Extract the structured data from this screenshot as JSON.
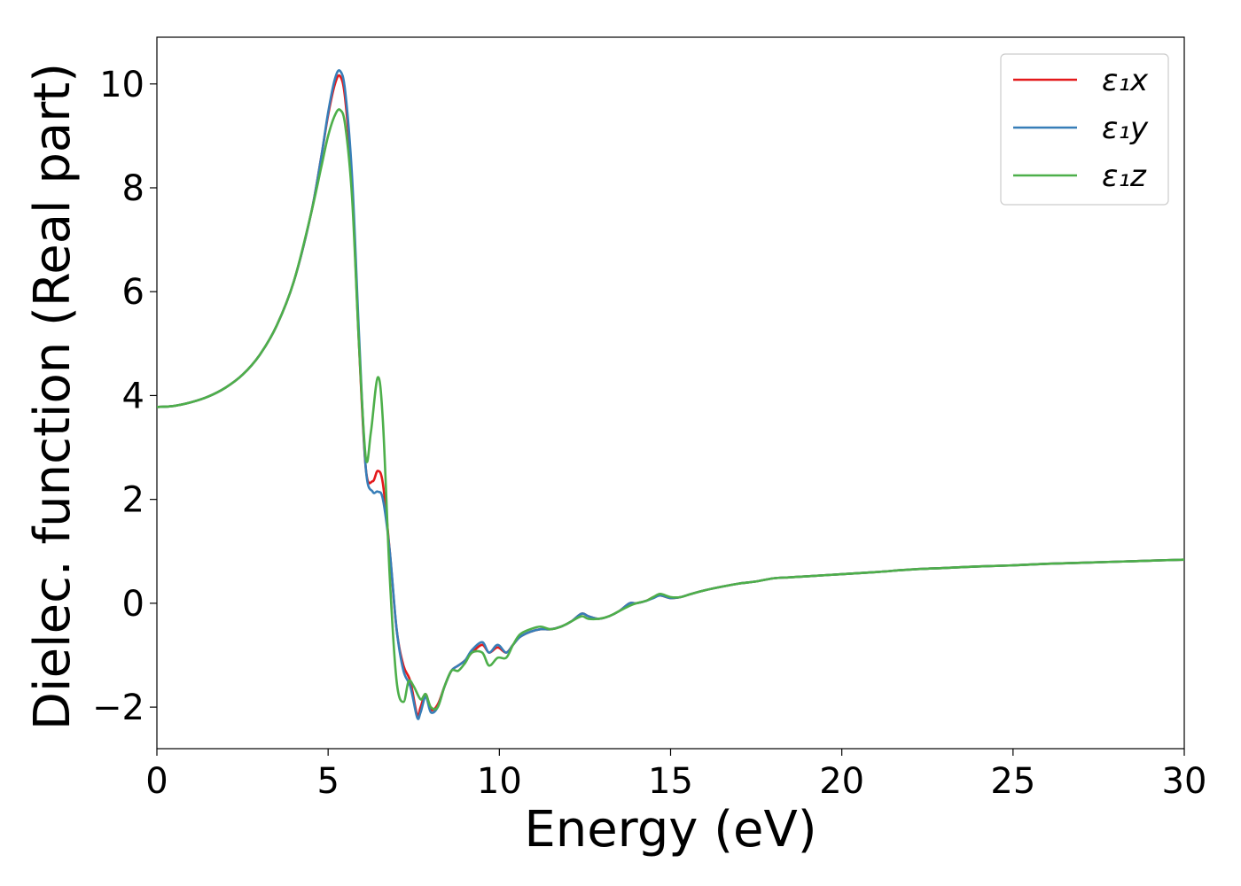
{
  "chart_data": {
    "type": "line",
    "title": "",
    "xlabel": "Energy (eV)",
    "ylabel": "Dielec. function (Real part)",
    "xlim": [
      0,
      30
    ],
    "ylim": [
      -2.8,
      10.9
    ],
    "xticks": [
      0,
      5,
      10,
      15,
      20,
      25,
      30
    ],
    "xtick_labels": [
      "0",
      "5",
      "10",
      "15",
      "20",
      "25",
      "30"
    ],
    "yticks": [
      -2,
      0,
      2,
      4,
      6,
      8,
      10
    ],
    "ytick_labels": [
      "−2",
      "0",
      "2",
      "4",
      "6",
      "8",
      "10"
    ],
    "grid": false,
    "legend_position": "top-right",
    "series": [
      {
        "name": "ε₁x",
        "color": "#e41a1c",
        "x": [
          0,
          0.5,
          1,
          1.5,
          2,
          2.5,
          3,
          3.5,
          4,
          4.5,
          4.8,
          5.0,
          5.2,
          5.35,
          5.5,
          5.7,
          5.9,
          6.1,
          6.3,
          6.45,
          6.6,
          6.8,
          7.0,
          7.2,
          7.4,
          7.6,
          7.7,
          7.85,
          8.0,
          8.2,
          8.4,
          8.6,
          8.8,
          9.0,
          9.2,
          9.5,
          9.7,
          9.95,
          10.2,
          10.4,
          10.6,
          10.9,
          11.2,
          11.5,
          11.8,
          12.1,
          12.4,
          12.6,
          12.9,
          13.2,
          13.5,
          13.8,
          14.0,
          14.3,
          14.5,
          14.7,
          15.0,
          15.3,
          15.6,
          16.0,
          16.5,
          17.0,
          17.5,
          18.0,
          18.5,
          19.0,
          20.0,
          21.0,
          22.0,
          23.0,
          24.0,
          25.0,
          26.0,
          27.0,
          28.0,
          29.0,
          30.0
        ],
        "values": [
          3.78,
          3.8,
          3.87,
          3.98,
          4.15,
          4.4,
          4.78,
          5.35,
          6.2,
          7.5,
          8.6,
          9.4,
          10.0,
          10.15,
          9.7,
          8.0,
          5.0,
          2.6,
          2.35,
          2.55,
          2.3,
          1.0,
          -0.5,
          -1.2,
          -1.5,
          -2.15,
          -2.0,
          -1.75,
          -2.05,
          -1.95,
          -1.6,
          -1.3,
          -1.2,
          -1.1,
          -0.95,
          -0.8,
          -0.95,
          -0.85,
          -0.95,
          -0.8,
          -0.65,
          -0.55,
          -0.5,
          -0.5,
          -0.45,
          -0.35,
          -0.2,
          -0.25,
          -0.3,
          -0.25,
          -0.15,
          0.0,
          0.0,
          0.05,
          0.12,
          0.15,
          0.1,
          0.12,
          0.18,
          0.25,
          0.32,
          0.38,
          0.42,
          0.48,
          0.5,
          0.52,
          0.56,
          0.6,
          0.65,
          0.68,
          0.71,
          0.73,
          0.76,
          0.78,
          0.8,
          0.82,
          0.84
        ]
      },
      {
        "name": "ε₁y",
        "color": "#377eb8",
        "x": [
          0,
          0.5,
          1,
          1.5,
          2,
          2.5,
          3,
          3.5,
          4,
          4.5,
          4.8,
          5.0,
          5.2,
          5.35,
          5.5,
          5.7,
          5.9,
          6.1,
          6.3,
          6.45,
          6.6,
          6.8,
          7.0,
          7.2,
          7.4,
          7.6,
          7.7,
          7.85,
          8.0,
          8.2,
          8.4,
          8.6,
          8.8,
          9.0,
          9.2,
          9.5,
          9.7,
          9.95,
          10.2,
          10.4,
          10.6,
          10.9,
          11.2,
          11.5,
          11.8,
          12.1,
          12.4,
          12.6,
          12.9,
          13.2,
          13.5,
          13.8,
          14.0,
          14.3,
          14.5,
          14.7,
          15.0,
          15.3,
          15.6,
          16.0,
          16.5,
          17.0,
          17.5,
          18.0,
          18.5,
          19.0,
          20.0,
          21.0,
          22.0,
          23.0,
          24.0,
          25.0,
          26.0,
          27.0,
          28.0,
          29.0,
          30.0
        ],
        "values": [
          3.78,
          3.8,
          3.87,
          3.98,
          4.15,
          4.4,
          4.78,
          5.35,
          6.2,
          7.5,
          8.6,
          9.45,
          10.1,
          10.25,
          9.85,
          8.2,
          5.2,
          2.6,
          2.15,
          2.15,
          2.0,
          1.0,
          -0.5,
          -1.3,
          -1.6,
          -2.2,
          -2.1,
          -1.8,
          -2.1,
          -2.0,
          -1.6,
          -1.3,
          -1.2,
          -1.1,
          -0.9,
          -0.75,
          -0.95,
          -0.8,
          -0.95,
          -0.8,
          -0.65,
          -0.55,
          -0.5,
          -0.5,
          -0.45,
          -0.35,
          -0.2,
          -0.25,
          -0.3,
          -0.25,
          -0.15,
          0.0,
          0.0,
          0.05,
          0.1,
          0.15,
          0.1,
          0.12,
          0.18,
          0.25,
          0.32,
          0.38,
          0.42,
          0.48,
          0.5,
          0.52,
          0.56,
          0.6,
          0.65,
          0.68,
          0.71,
          0.73,
          0.76,
          0.78,
          0.8,
          0.82,
          0.84
        ]
      },
      {
        "name": "ε₁z",
        "color": "#4daf4a",
        "x": [
          0,
          0.5,
          1,
          1.5,
          2,
          2.5,
          3,
          3.5,
          4,
          4.5,
          4.8,
          5.0,
          5.2,
          5.35,
          5.5,
          5.7,
          5.9,
          6.1,
          6.25,
          6.45,
          6.6,
          6.8,
          7.0,
          7.2,
          7.35,
          7.5,
          7.7,
          7.85,
          8.0,
          8.2,
          8.4,
          8.6,
          8.8,
          9.0,
          9.2,
          9.5,
          9.7,
          9.95,
          10.2,
          10.4,
          10.6,
          10.9,
          11.2,
          11.5,
          11.8,
          12.1,
          12.4,
          12.6,
          12.9,
          13.2,
          13.5,
          13.8,
          14.0,
          14.3,
          14.5,
          14.7,
          15.0,
          15.3,
          15.6,
          16.0,
          16.5,
          17.0,
          17.5,
          18.0,
          18.5,
          19.0,
          20.0,
          21.0,
          22.0,
          23.0,
          24.0,
          25.0,
          26.0,
          27.0,
          28.0,
          29.0,
          30.0
        ],
        "values": [
          3.78,
          3.8,
          3.87,
          3.98,
          4.15,
          4.4,
          4.78,
          5.35,
          6.2,
          7.5,
          8.4,
          9.0,
          9.4,
          9.5,
          9.2,
          7.8,
          5.0,
          2.8,
          3.3,
          4.35,
          3.5,
          0.5,
          -1.5,
          -1.9,
          -1.5,
          -1.6,
          -1.85,
          -1.75,
          -2.0,
          -2.0,
          -1.6,
          -1.3,
          -1.3,
          -1.15,
          -0.95,
          -0.95,
          -1.2,
          -1.05,
          -1.05,
          -0.8,
          -0.6,
          -0.5,
          -0.45,
          -0.5,
          -0.45,
          -0.35,
          -0.25,
          -0.3,
          -0.3,
          -0.25,
          -0.15,
          -0.05,
          0.0,
          0.05,
          0.12,
          0.18,
          0.12,
          0.12,
          0.18,
          0.25,
          0.32,
          0.38,
          0.42,
          0.48,
          0.5,
          0.52,
          0.56,
          0.6,
          0.65,
          0.68,
          0.71,
          0.73,
          0.76,
          0.78,
          0.8,
          0.82,
          0.84
        ]
      }
    ]
  }
}
